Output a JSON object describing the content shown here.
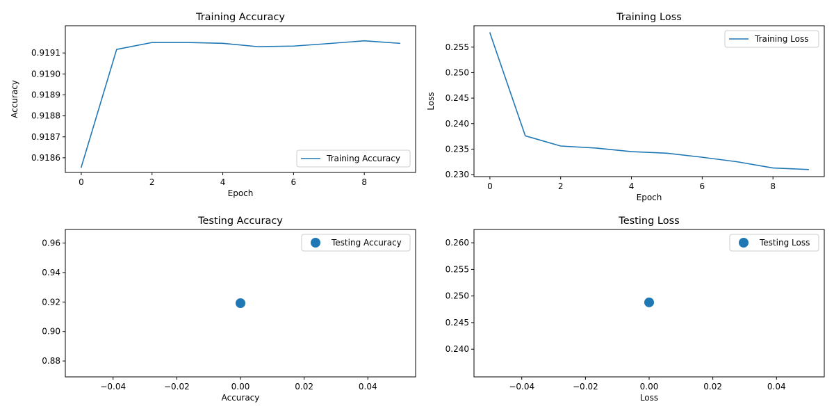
{
  "colors": {
    "series": "#1f77b4"
  },
  "chart_data": [
    {
      "type": "line",
      "title": "Training Accuracy",
      "xlabel": "Epoch",
      "ylabel": "Accuracy",
      "xlim": [
        -0.45,
        9.45
      ],
      "ylim": [
        0.91853,
        0.91923
      ],
      "xticks": [
        0,
        2,
        4,
        6,
        8
      ],
      "xtick_labels": [
        "0",
        "2",
        "4",
        "6",
        "8"
      ],
      "yticks": [
        0.9186,
        0.9187,
        0.9188,
        0.9189,
        0.919,
        0.9191
      ],
      "ytick_labels": [
        "0.9186",
        "0.9187",
        "0.9188",
        "0.9189",
        "0.9190",
        "0.9191"
      ],
      "grid": false,
      "legend_position": "lower-right",
      "series": [
        {
          "name": "Training Accuracy",
          "x": [
            0,
            1,
            2,
            3,
            4,
            5,
            6,
            7,
            8,
            9
          ],
          "y": [
            0.918555,
            0.919117,
            0.91915,
            0.91915,
            0.919146,
            0.91913,
            0.919133,
            0.919145,
            0.919158,
            0.919146
          ]
        }
      ]
    },
    {
      "type": "line",
      "title": "Training Loss",
      "xlabel": "Epoch",
      "ylabel": "Loss",
      "xlim": [
        -0.45,
        9.45
      ],
      "ylim": [
        0.2296,
        0.2592
      ],
      "xticks": [
        0,
        2,
        4,
        6,
        8
      ],
      "xtick_labels": [
        "0",
        "2",
        "4",
        "6",
        "8"
      ],
      "yticks": [
        0.23,
        0.235,
        0.24,
        0.245,
        0.25,
        0.255
      ],
      "ytick_labels": [
        "0.230",
        "0.235",
        "0.240",
        "0.245",
        "0.250",
        "0.255"
      ],
      "grid": false,
      "legend_position": "upper-right",
      "series": [
        {
          "name": "Training Loss",
          "x": [
            0,
            1,
            2,
            3,
            4,
            5,
            6,
            7,
            8,
            9
          ],
          "y": [
            0.2578,
            0.2376,
            0.2356,
            0.2352,
            0.2345,
            0.2342,
            0.2334,
            0.2325,
            0.2313,
            0.231
          ]
        }
      ]
    },
    {
      "type": "scatter",
      "title": "Testing Accuracy",
      "xlabel": "Accuracy",
      "ylabel": "",
      "xlim": [
        -0.055,
        0.055
      ],
      "ylim": [
        0.8692,
        0.9692
      ],
      "xticks": [
        -0.04,
        -0.02,
        0,
        0.02,
        0.04
      ],
      "xtick_labels": [
        "−0.04",
        "−0.02",
        "0.00",
        "0.02",
        "0.04"
      ],
      "yticks": [
        0.88,
        0.9,
        0.92,
        0.94,
        0.96
      ],
      "ytick_labels": [
        "0.88",
        "0.90",
        "0.92",
        "0.94",
        "0.96"
      ],
      "grid": false,
      "legend_position": "upper-right",
      "series": [
        {
          "name": "Testing Accuracy",
          "x": [
            0
          ],
          "y": [
            0.9192
          ]
        }
      ]
    },
    {
      "type": "scatter",
      "title": "Testing Loss",
      "xlabel": "Loss",
      "ylabel": "",
      "xlim": [
        -0.055,
        0.055
      ],
      "ylim": [
        0.2348,
        0.2625
      ],
      "xticks": [
        -0.04,
        -0.02,
        0,
        0.02,
        0.04
      ],
      "xtick_labels": [
        "−0.04",
        "−0.02",
        "0.00",
        "0.02",
        "0.04"
      ],
      "yticks": [
        0.24,
        0.245,
        0.25,
        0.255,
        0.26
      ],
      "ytick_labels": [
        "0.240",
        "0.245",
        "0.250",
        "0.255",
        "0.260"
      ],
      "grid": false,
      "legend_position": "upper-right",
      "series": [
        {
          "name": "Testing Loss",
          "x": [
            0
          ],
          "y": [
            0.2488
          ]
        }
      ]
    }
  ]
}
